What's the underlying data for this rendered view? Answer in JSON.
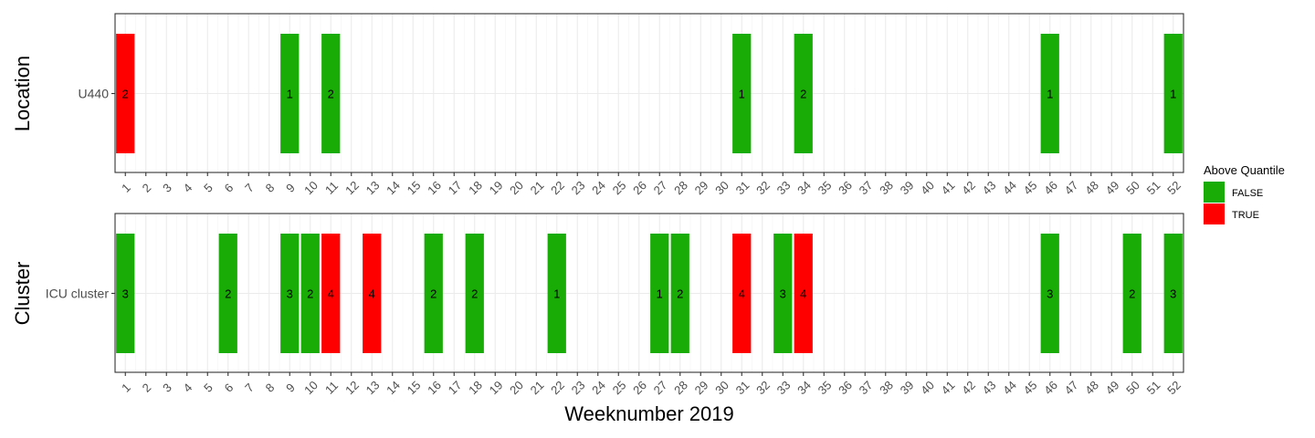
{
  "chart_data": {
    "type": "heatmap",
    "xlabel": "Weeknumber 2019",
    "x_categories": [
      "1",
      "2",
      "3",
      "4",
      "5",
      "6",
      "7",
      "8",
      "9",
      "10",
      "11",
      "12",
      "13",
      "14",
      "15",
      "16",
      "17",
      "18",
      "19",
      "20",
      "21",
      "22",
      "23",
      "24",
      "25",
      "26",
      "27",
      "28",
      "29",
      "30",
      "31",
      "32",
      "33",
      "34",
      "35",
      "36",
      "37",
      "38",
      "39",
      "40",
      "41",
      "42",
      "43",
      "44",
      "45",
      "46",
      "47",
      "48",
      "49",
      "50",
      "51",
      "52"
    ],
    "grid": true,
    "legend": {
      "title": "Above Quantile",
      "position": "right",
      "entries": [
        {
          "label": "FALSE",
          "color": "#1aac06"
        },
        {
          "label": "TRUE",
          "color": "#ff0000"
        }
      ]
    },
    "panels": [
      {
        "ylabel": "Location",
        "category": "U440",
        "cells": [
          {
            "week": 1,
            "count": 2,
            "above": true
          },
          {
            "week": 9,
            "count": 1,
            "above": false
          },
          {
            "week": 11,
            "count": 2,
            "above": false
          },
          {
            "week": 31,
            "count": 1,
            "above": false
          },
          {
            "week": 34,
            "count": 2,
            "above": false
          },
          {
            "week": 46,
            "count": 1,
            "above": false
          },
          {
            "week": 52,
            "count": 1,
            "above": false
          }
        ]
      },
      {
        "ylabel": "Cluster",
        "category": "ICU cluster",
        "cells": [
          {
            "week": 1,
            "count": 3,
            "above": false
          },
          {
            "week": 6,
            "count": 2,
            "above": false
          },
          {
            "week": 9,
            "count": 3,
            "above": false
          },
          {
            "week": 10,
            "count": 2,
            "above": false
          },
          {
            "week": 11,
            "count": 4,
            "above": true
          },
          {
            "week": 13,
            "count": 4,
            "above": true
          },
          {
            "week": 16,
            "count": 2,
            "above": false
          },
          {
            "week": 18,
            "count": 2,
            "above": false
          },
          {
            "week": 22,
            "count": 1,
            "above": false
          },
          {
            "week": 27,
            "count": 1,
            "above": false
          },
          {
            "week": 28,
            "count": 2,
            "above": false
          },
          {
            "week": 31,
            "count": 4,
            "above": true
          },
          {
            "week": 33,
            "count": 3,
            "above": false
          },
          {
            "week": 34,
            "count": 4,
            "above": true
          },
          {
            "week": 46,
            "count": 3,
            "above": false
          },
          {
            "week": 50,
            "count": 2,
            "above": false
          },
          {
            "week": 52,
            "count": 3,
            "above": false
          }
        ]
      }
    ]
  }
}
